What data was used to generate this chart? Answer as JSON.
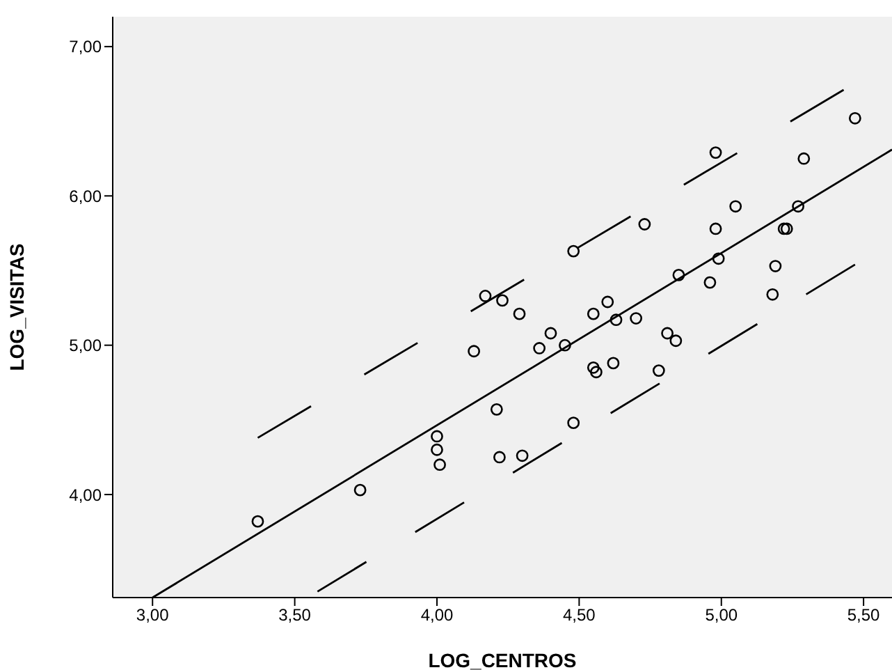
{
  "chart_data": {
    "type": "scatter",
    "xlabel": "LOG_CENTROS",
    "ylabel": "LOG_VISITAS",
    "xlim": [
      2.86,
      5.6
    ],
    "ylim": [
      3.31,
      7.2
    ],
    "xticks": [
      {
        "value": 3,
        "label": "3,00"
      },
      {
        "value": 3.5,
        "label": "3,50"
      },
      {
        "value": 4,
        "label": "4,00"
      },
      {
        "value": 4.5,
        "label": "4,50"
      },
      {
        "value": 5,
        "label": "5,00"
      },
      {
        "value": 5.5,
        "label": "5,50"
      }
    ],
    "yticks": [
      {
        "value": 4,
        "label": "4,00"
      },
      {
        "value": 5,
        "label": "5,00"
      },
      {
        "value": 6,
        "label": "6,00"
      },
      {
        "value": 7,
        "label": "7,00"
      }
    ],
    "series": [
      {
        "color": "#000000",
        "marker": "circle",
        "x": [
          3.37,
          3.73,
          4.0,
          4.0,
          4.01,
          4.13,
          4.17,
          4.21,
          4.22,
          4.23,
          4.29,
          4.3,
          4.36,
          4.4,
          4.45,
          4.48,
          4.48,
          4.55,
          4.55,
          4.56,
          4.6,
          4.62,
          4.63,
          4.7,
          4.73,
          4.78,
          4.81,
          4.84,
          4.85,
          4.96,
          4.98,
          4.98,
          4.99,
          5.05,
          5.18,
          5.19,
          5.22,
          5.23,
          5.27,
          5.29,
          5.47
        ],
        "values": [
          3.82,
          4.03,
          4.39,
          4.3,
          4.2,
          4.96,
          5.33,
          4.57,
          4.25,
          5.3,
          5.21,
          4.26,
          4.98,
          5.08,
          5.0,
          4.48,
          5.63,
          4.85,
          5.21,
          4.82,
          5.29,
          4.88,
          5.17,
          5.18,
          5.81,
          4.83,
          5.08,
          5.03,
          5.47,
          5.42,
          5.78,
          6.29,
          5.58,
          5.93,
          5.34,
          5.53,
          5.78,
          5.78,
          5.93,
          6.25,
          6.52
        ]
      },
      {
        "type": "line",
        "color": "#000000",
        "line_style": "solid",
        "x": [
          3.0,
          5.6
        ],
        "values": [
          3.31,
          6.31
        ]
      },
      {
        "type": "line",
        "color": "#000000",
        "line_style": "dashed",
        "x": [
          3.37,
          5.43
        ],
        "values": [
          4.38,
          6.71
        ]
      },
      {
        "type": "line",
        "color": "#000000",
        "line_style": "dashed",
        "x": [
          3.58,
          5.47
        ],
        "values": [
          3.35,
          5.54
        ]
      }
    ]
  }
}
